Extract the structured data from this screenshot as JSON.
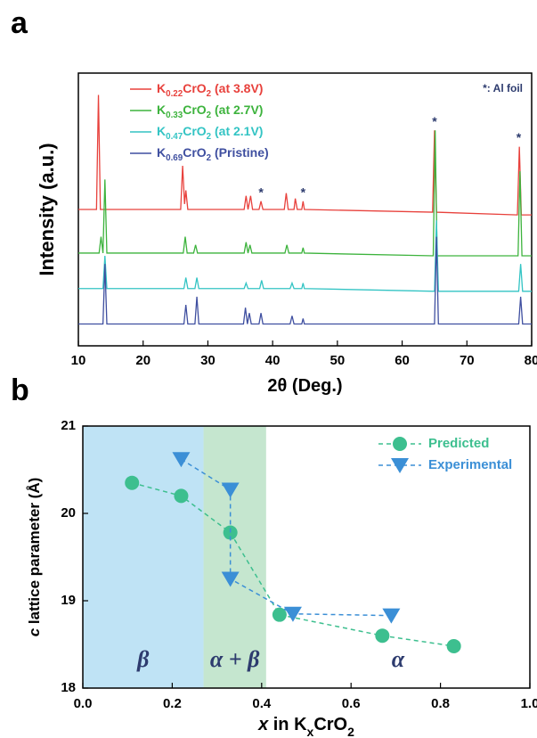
{
  "chart_data": [
    {
      "type": "line",
      "panel": "a",
      "xlabel": "2θ (Deg.)",
      "ylabel": "Intensity (a.u.)",
      "xlim": [
        10,
        80
      ],
      "xticks": [
        10,
        20,
        30,
        40,
        50,
        60,
        70,
        80
      ],
      "ylim": [
        0,
        100
      ],
      "legend": "upper left",
      "note": "*: Al foil",
      "annotations": [
        {
          "text": "*",
          "x": 38.2,
          "y": 56
        },
        {
          "text": "*",
          "x": 44.7,
          "y": 56
        },
        {
          "text": "*",
          "x": 65,
          "y": 82
        },
        {
          "text": "*",
          "x": 78,
          "y": 76
        }
      ],
      "series": [
        {
          "name": "K0.22CrO2 (at 3.8V)",
          "color": "#e8413c",
          "x": [
            10,
            12.8,
            13.1,
            13.4,
            25.8,
            26.1,
            26.4,
            26.6,
            26.9,
            35.6,
            35.9,
            36.2,
            36.6,
            36.9,
            37.2,
            37.9,
            38.2,
            38.5,
            41.8,
            42.1,
            42.4,
            43.3,
            43.5,
            43.8,
            44.5,
            44.7,
            44.9,
            64.7,
            65.0,
            65.3,
            77.8,
            78.1,
            78.4,
            80
          ],
          "values": [
            50,
            50,
            92,
            50,
            50,
            66,
            52,
            57,
            50,
            50,
            55,
            50,
            55,
            50,
            50,
            50,
            53,
            50,
            50,
            56,
            50,
            50,
            54,
            50,
            50,
            53,
            50,
            49,
            79,
            49,
            48,
            73,
            48,
            48
          ]
        },
        {
          "name": "K0.33CrO2 (at 2.7V)",
          "color": "#3db33d",
          "x": [
            10,
            13.2,
            13.5,
            13.8,
            14.1,
            14.4,
            26.2,
            26.5,
            26.8,
            27.8,
            28.1,
            28.4,
            35.6,
            35.9,
            36.2,
            36.5,
            36.8,
            41.9,
            42.2,
            42.5,
            44.5,
            44.7,
            44.9,
            64.8,
            65.1,
            65.4,
            77.9,
            78.2,
            78.5,
            80
          ],
          "values": [
            34,
            34,
            40,
            34,
            61,
            34,
            34,
            40,
            34,
            34,
            37,
            34,
            34,
            38,
            34,
            37,
            34,
            34,
            37,
            34,
            34,
            36,
            34,
            33,
            79,
            33,
            33,
            64,
            33,
            33
          ]
        },
        {
          "name": "K0.47CrO2 (at 2.1V)",
          "color": "#33c4c4",
          "x": [
            10,
            13.8,
            14.1,
            14.4,
            26.3,
            26.6,
            26.9,
            28.0,
            28.3,
            28.6,
            35.6,
            35.9,
            36.2,
            38.0,
            38.3,
            38.6,
            42.7,
            43.0,
            43.3,
            44.5,
            44.7,
            44.9,
            65.0,
            65.3,
            65.6,
            78.0,
            78.3,
            78.6,
            80
          ],
          "values": [
            21,
            21,
            33,
            21,
            21,
            25,
            21,
            21,
            25,
            21,
            21,
            23,
            21,
            21,
            24,
            21,
            21,
            23,
            21,
            21,
            23,
            21,
            20,
            46,
            20,
            20,
            30,
            20,
            20
          ]
        },
        {
          "name": "K0.69CrO2 (Pristine)",
          "color": "#3f4fa0",
          "x": [
            10,
            13.8,
            14.1,
            14.4,
            26.3,
            26.6,
            26.9,
            28.0,
            28.3,
            28.6,
            35.5,
            35.8,
            36.1,
            36.4,
            36.7,
            37.9,
            38.2,
            38.5,
            42.7,
            43.0,
            43.3,
            44.5,
            44.7,
            44.9,
            65.0,
            65.3,
            65.6,
            78.0,
            78.3,
            78.6,
            80
          ],
          "values": [
            8,
            8,
            30,
            8,
            8,
            15,
            8,
            8,
            18,
            8,
            8,
            14,
            8,
            12,
            8,
            8,
            12,
            8,
            8,
            11,
            8,
            8,
            10,
            8,
            8,
            40,
            8,
            8,
            18,
            8,
            8
          ]
        }
      ]
    },
    {
      "type": "line",
      "panel": "b",
      "xlabel": "x in KxCrO2",
      "ylabel": "c lattice parameter (Å)",
      "xlim": [
        0,
        1
      ],
      "xticks": [
        {
          "value": 0,
          "label": "0.0"
        },
        0.2,
        0.4,
        0.6,
        0.8,
        {
          "value": 1,
          "label": "1.0"
        }
      ],
      "ylim": [
        18,
        21
      ],
      "yticks": [
        18,
        19,
        20,
        21
      ],
      "legend": "upper right",
      "regions": [
        {
          "label": "β",
          "xlim": [
            0,
            0.27
          ],
          "color": "#bfe3f5"
        },
        {
          "label": "α + β",
          "xlim": [
            0.27,
            0.41
          ],
          "color": "#c5e6cf"
        },
        {
          "label": "α",
          "xlim": [
            0.41,
            1
          ]
        }
      ],
      "series": [
        {
          "name": "Predicted",
          "color": "#3dbf8f",
          "marker": "circle",
          "x": [
            0.11,
            0.22,
            0.33,
            0.44,
            0.67,
            0.83
          ],
          "values": [
            20.35,
            20.2,
            19.78,
            18.84,
            18.6,
            18.48
          ]
        },
        {
          "name": "Experimental",
          "color": "#3b8fd6",
          "marker": "triangle",
          "x": [
            0.22,
            0.33,
            0.33,
            0.47,
            0.69
          ],
          "values": [
            20.62,
            20.27,
            19.25,
            18.85,
            18.83
          ]
        }
      ]
    }
  ]
}
